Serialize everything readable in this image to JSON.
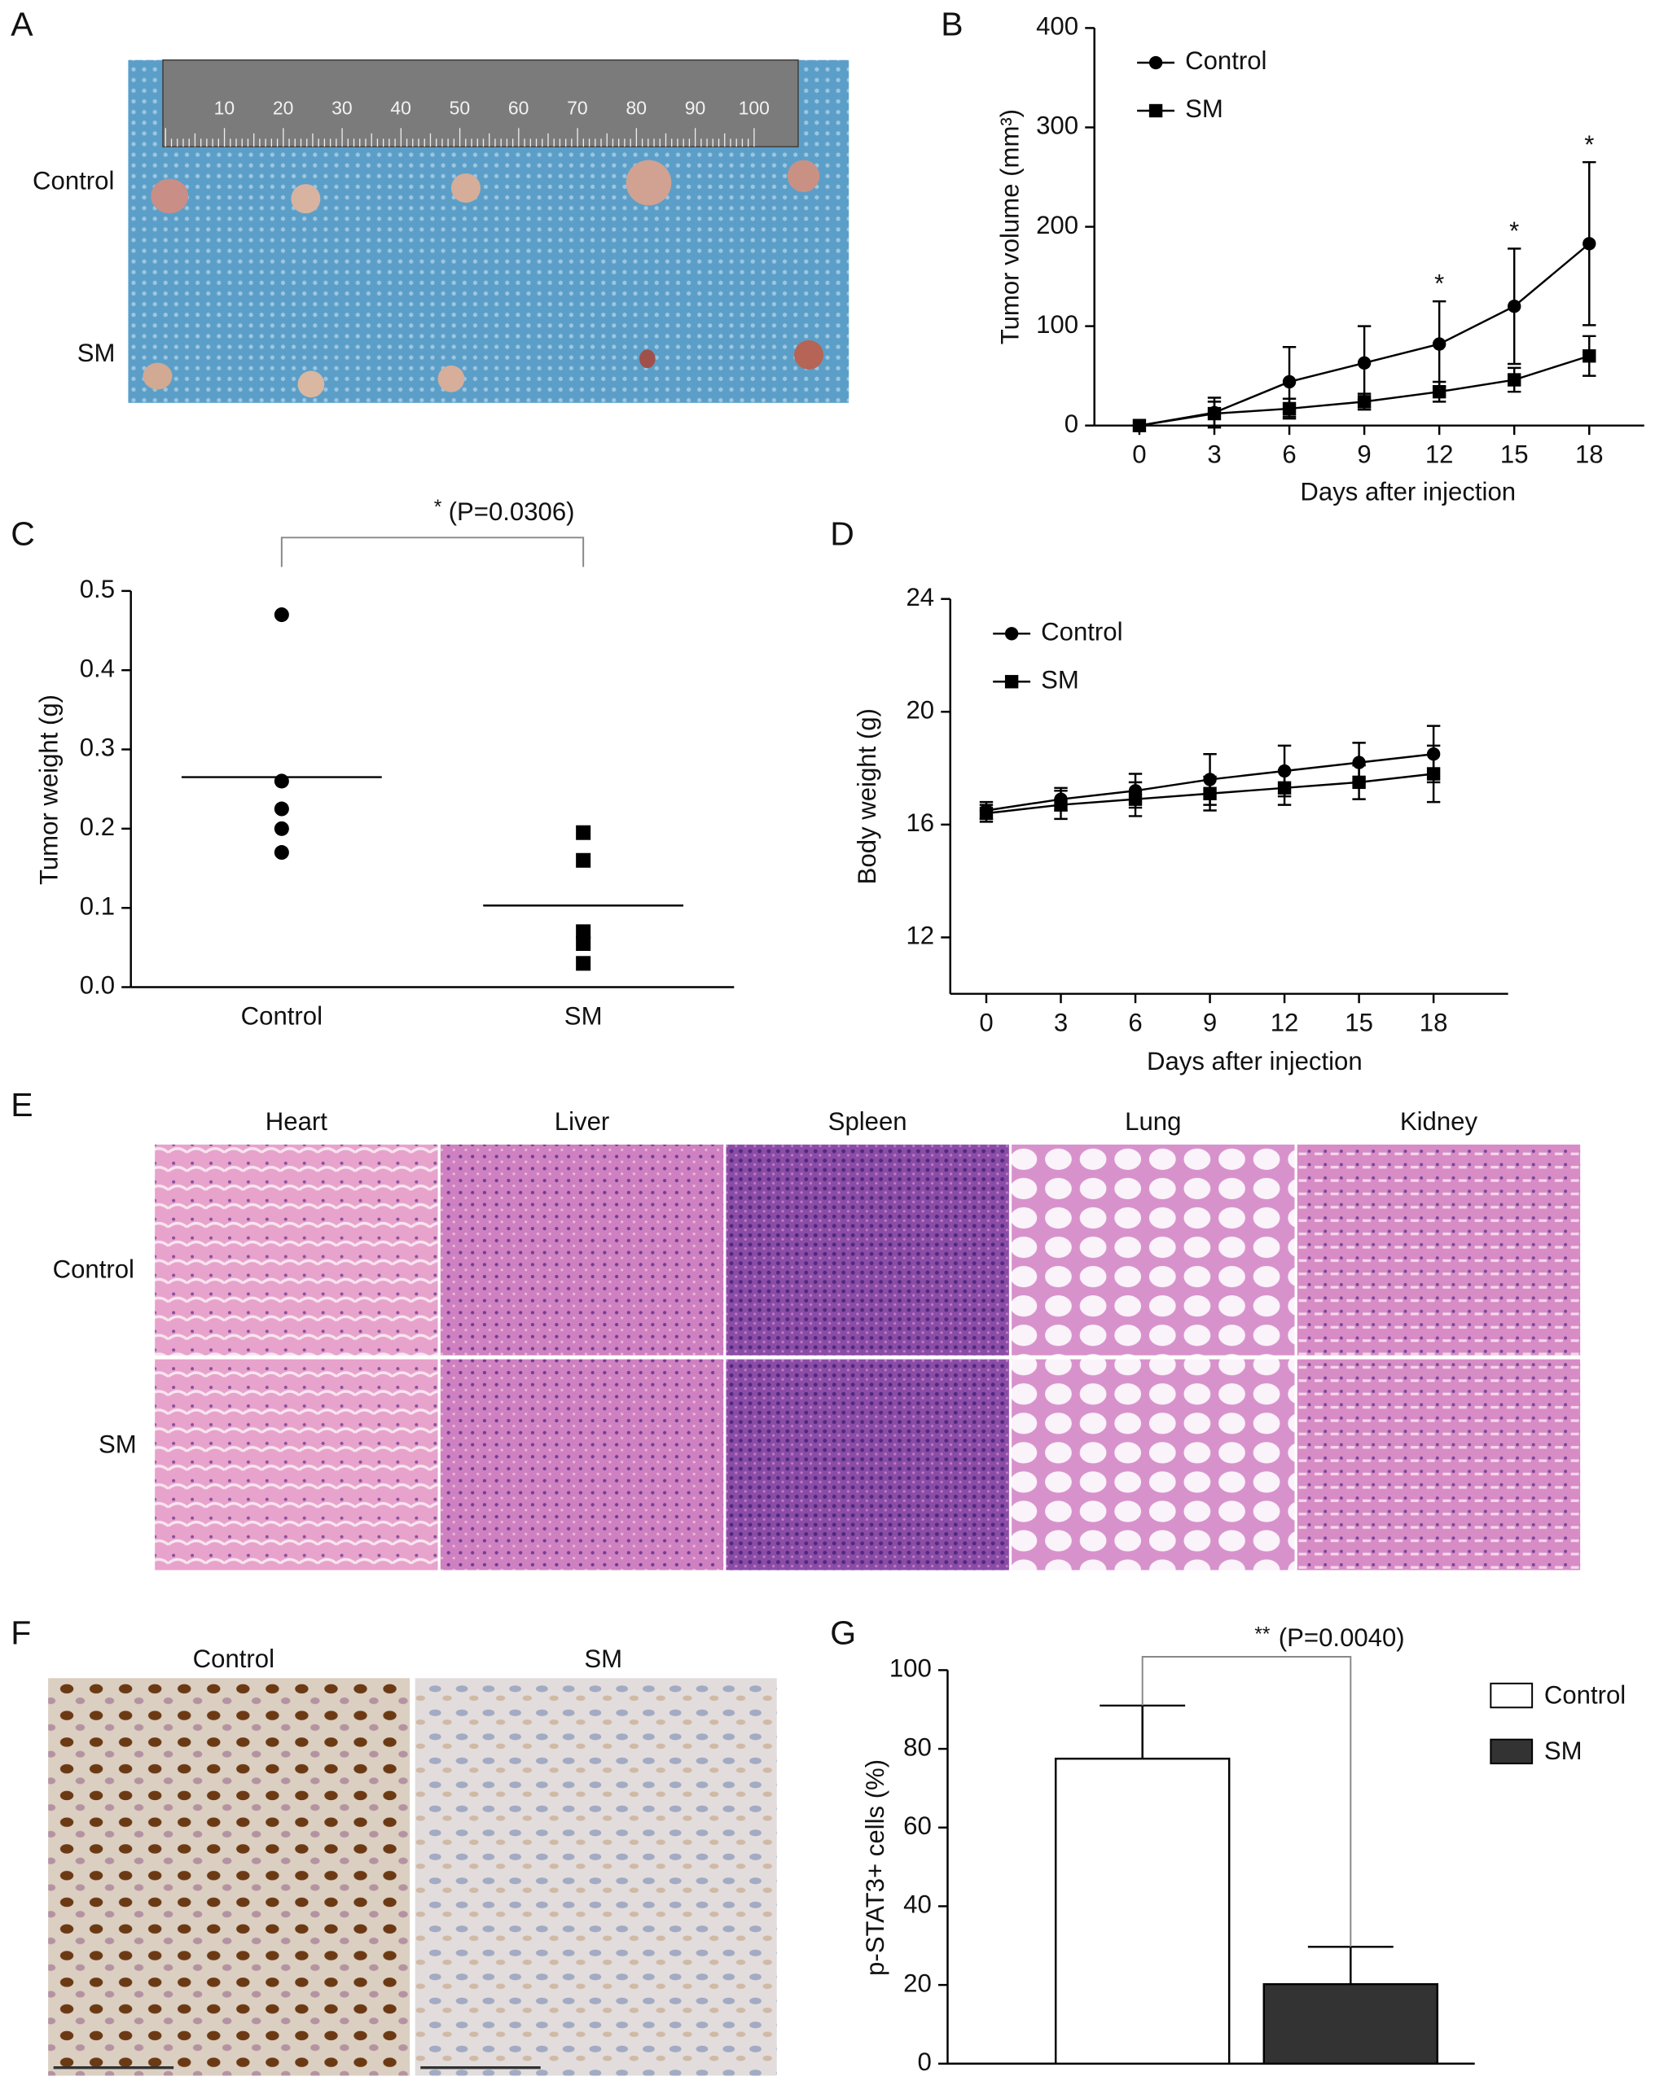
{
  "panel_labels": [
    "A",
    "B",
    "C",
    "D",
    "E",
    "F",
    "G"
  ],
  "photo_a": {
    "rows": [
      "Control",
      "SM"
    ],
    "ruler_labels": [
      "10",
      "20",
      "30",
      "40",
      "50",
      "60",
      "70",
      "80",
      "90",
      "100"
    ]
  },
  "photo_e": {
    "columns": [
      "Heart",
      "Liver",
      "Spleen",
      "Lung",
      "Kidney"
    ],
    "rows": [
      "Control",
      "SM"
    ]
  },
  "photo_f": {
    "columns": [
      "Control",
      "SM"
    ]
  },
  "chart_data": [
    {
      "type": "line",
      "x_label": "Days after injection",
      "y_label": "Tumor volume (mm³)",
      "x": [
        0,
        3,
        6,
        9,
        12,
        15,
        18
      ],
      "xlim": [
        -1.8,
        20.2
      ],
      "xticks": [
        0,
        3,
        6,
        9,
        12,
        15,
        18
      ],
      "ylim": [
        0,
        400
      ],
      "yticks": [
        0,
        100,
        200,
        300,
        400
      ],
      "legend": "upper left",
      "series": [
        {
          "name": "Control",
          "color": "#000000",
          "marker": "circle",
          "values": [
            0,
            13,
            44,
            63,
            82,
            120,
            183
          ],
          "errors": [
            0,
            15,
            35,
            37,
            43,
            58,
            82
          ]
        },
        {
          "name": "SM",
          "color": "#000000",
          "marker": "square",
          "values": [
            0,
            12,
            17,
            24,
            34,
            46,
            70
          ],
          "errors": [
            0,
            12,
            10,
            8,
            10,
            12,
            20
          ]
        }
      ],
      "annotations": [
        {
          "text": "*",
          "x": 12
        },
        {
          "text": "*",
          "x": 15
        },
        {
          "text": "*",
          "x": 18
        }
      ]
    },
    {
      "type": "strip",
      "y_label": "Tumor weight (g)",
      "categories": [
        "Control",
        "SM"
      ],
      "markers": [
        "circle",
        "square"
      ],
      "color": "#000000",
      "values": [
        [
          0.47,
          0.26,
          0.225,
          0.2,
          0.17
        ],
        [
          0.195,
          0.16,
          0.07,
          0.055,
          0.03
        ]
      ],
      "means": [
        0.265,
        0.103
      ],
      "ylim": [
        0,
        0.5
      ],
      "yticks": [
        {
          "value": 0,
          "label": "0.0"
        },
        0.1,
        0.2,
        0.3,
        0.4,
        0.5
      ],
      "significance": "*",
      "p_value_text": "(P=0.0306)"
    },
    {
      "type": "line",
      "x_label": "Days after injection",
      "y_label": "Body weight (g)",
      "x": [
        0,
        3,
        6,
        9,
        12,
        15,
        18
      ],
      "xlim": [
        -1.45,
        21
      ],
      "xticks": [
        0,
        3,
        6,
        9,
        12,
        15,
        18
      ],
      "ylim": [
        10,
        24
      ],
      "yticks": [
        12,
        16,
        20,
        24
      ],
      "legend": "upper left",
      "series": [
        {
          "name": "Control",
          "color": "#000000",
          "marker": "circle",
          "values": [
            16.5,
            16.9,
            17.2,
            17.6,
            17.9,
            18.2,
            18.5
          ],
          "errors": [
            0.3,
            0.4,
            0.6,
            0.9,
            0.9,
            0.7,
            1.0
          ]
        },
        {
          "name": "SM",
          "color": "#000000",
          "marker": "square",
          "values": [
            16.4,
            16.7,
            16.9,
            17.1,
            17.3,
            17.5,
            17.8
          ],
          "errors": [
            0.3,
            0.5,
            0.6,
            0.6,
            0.6,
            0.6,
            1.0
          ]
        }
      ]
    },
    {
      "type": "bar",
      "y_label": "p-STAT3+ cells (%)",
      "ylim": [
        0,
        100
      ],
      "yticks": [
        0,
        20,
        40,
        60,
        80,
        100
      ],
      "legend": "upper right",
      "series": [
        {
          "name": "Control",
          "color": "#ffffff",
          "values": [
            77.5
          ],
          "errors": [
            13.5
          ]
        },
        {
          "name": "SM",
          "color": "#333333",
          "values": [
            20.2
          ],
          "errors": [
            9.5
          ]
        }
      ],
      "significance": "**",
      "p_value_text": "(P=0.0040)"
    }
  ]
}
